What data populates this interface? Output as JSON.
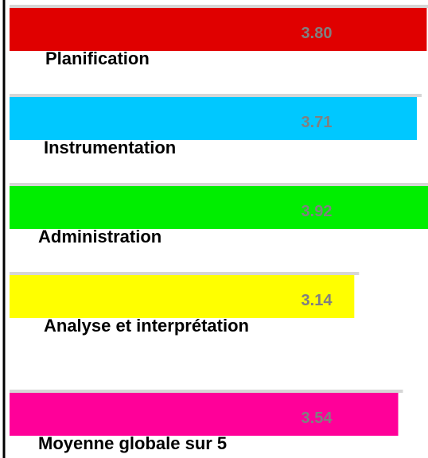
{
  "chart_data": {
    "type": "bar",
    "orientation": "horizontal",
    "categories": [
      "Planification",
      "Instrumentation",
      "Administration",
      "Analyse et interprétation",
      "Moyenne globale sur 5"
    ],
    "values": [
      3.8,
      3.71,
      3.92,
      3.14,
      3.54
    ],
    "value_labels": [
      "3.80",
      "3.71",
      "3.92",
      "3.14",
      "3.54"
    ],
    "colors": [
      "#e00000",
      "#00c8ff",
      "#00ee00",
      "#ffff00",
      "#ff0099"
    ],
    "value_label_color": "#808080",
    "title": "",
    "xlabel": "",
    "ylabel": "",
    "grid": false,
    "legend": "none"
  }
}
